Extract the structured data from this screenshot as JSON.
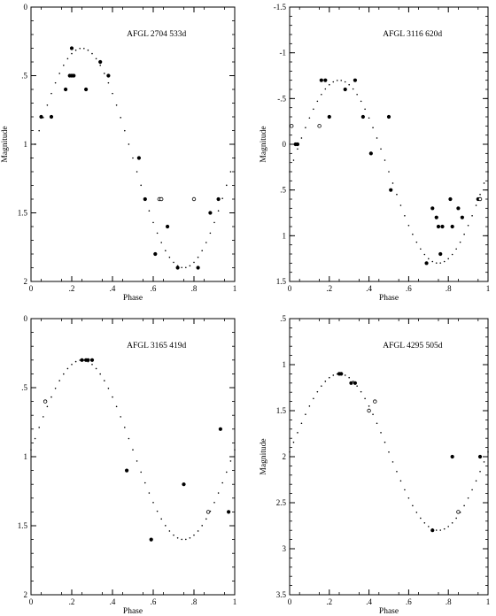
{
  "chart_data": [
    {
      "type": "scatter",
      "title": "AFGL 2704   533d",
      "xlabel": "Phase",
      "ylabel": "Magnitude",
      "xlim": [
        0,
        1
      ],
      "ylim": [
        2,
        0
      ],
      "y_inverted": true,
      "x_ticks": [
        0,
        0.2,
        0.4,
        0.6,
        0.8,
        1
      ],
      "x_tick_labels": [
        "0",
        ".2",
        ".4",
        ".6",
        ".8",
        "1"
      ],
      "y_ticks": [
        0,
        0.5,
        1,
        1.5,
        2
      ],
      "y_tick_labels": [
        "0",
        ".5",
        "1",
        "1.5",
        "2"
      ],
      "fit": {
        "mean": 1.1,
        "amplitude": 0.8,
        "peak_phase": 0.25
      },
      "series": [
        {
          "marker": "filled",
          "x": [
            0.05,
            0.1,
            0.17,
            0.19,
            0.2,
            0.2,
            0.21,
            0.27,
            0.34,
            0.38,
            0.53,
            0.56,
            0.61,
            0.67,
            0.72,
            0.82,
            0.88,
            0.92
          ],
          "y": [
            0.8,
            0.8,
            0.6,
            0.5,
            0.3,
            0.5,
            0.5,
            0.6,
            0.4,
            0.5,
            1.1,
            1.4,
            1.8,
            1.6,
            1.9,
            1.9,
            1.5,
            1.4
          ]
        },
        {
          "marker": "open",
          "x": [
            0.63,
            0.64,
            0.8
          ],
          "y": [
            1.4,
            1.4,
            1.4
          ]
        }
      ]
    },
    {
      "type": "scatter",
      "title": "AFGL 3116   620d",
      "xlabel": "Phase",
      "ylabel": "Magnitude",
      "xlim": [
        0,
        1
      ],
      "ylim": [
        1.5,
        -1.5
      ],
      "y_inverted": true,
      "x_ticks": [
        0,
        0.2,
        0.4,
        0.6,
        0.8,
        1
      ],
      "x_tick_labels": [
        "0",
        ".2",
        ".4",
        ".6",
        ".8",
        "1"
      ],
      "y_ticks": [
        -1.5,
        -1,
        -0.5,
        0,
        0.5,
        1,
        1.5
      ],
      "y_tick_labels": [
        "-1.5",
        "-1",
        "-.5",
        "0",
        ".5",
        "1",
        "1.5"
      ],
      "fit": {
        "mean": 0.3,
        "amplitude": 1.0,
        "peak_phase": 0.25
      },
      "series": [
        {
          "marker": "filled",
          "x": [
            0.03,
            0.04,
            0.16,
            0.18,
            0.2,
            0.28,
            0.33,
            0.37,
            0.41,
            0.5,
            0.51,
            0.69,
            0.72,
            0.74,
            0.75,
            0.76,
            0.77,
            0.81,
            0.82,
            0.85,
            0.87,
            0.95
          ],
          "y": [
            0.0,
            0.0,
            -0.7,
            -0.7,
            -0.3,
            -0.6,
            -0.7,
            -0.3,
            0.1,
            -0.3,
            0.5,
            1.3,
            0.7,
            0.8,
            0.9,
            1.2,
            0.9,
            0.6,
            0.9,
            0.7,
            0.8,
            0.6
          ]
        },
        {
          "marker": "open",
          "x": [
            0.01,
            0.15,
            0.96
          ],
          "y": [
            -0.2,
            -0.2,
            0.6
          ]
        }
      ]
    },
    {
      "type": "scatter",
      "title": "AFGL 3165   419d",
      "xlabel": "Phase",
      "ylabel": "",
      "xlim": [
        0,
        1
      ],
      "ylim": [
        2,
        0
      ],
      "y_inverted": true,
      "x_ticks": [
        0,
        0.2,
        0.4,
        0.6,
        0.8,
        1
      ],
      "x_tick_labels": [
        "0",
        ".2",
        ".4",
        ".6",
        ".8",
        "1"
      ],
      "y_ticks": [
        0,
        0.5,
        1,
        1.5,
        2
      ],
      "y_tick_labels": [
        "0",
        ".5",
        "1",
        "1.5",
        "2"
      ],
      "fit": {
        "mean": 0.95,
        "amplitude": 0.65,
        "peak_phase": 0.25
      },
      "series": [
        {
          "marker": "filled",
          "x": [
            0.25,
            0.27,
            0.28,
            0.3,
            0.47,
            0.59,
            0.75,
            0.93,
            0.97
          ],
          "y": [
            0.3,
            0.3,
            0.3,
            0.3,
            1.1,
            1.6,
            1.2,
            0.8,
            1.4
          ]
        },
        {
          "marker": "open",
          "x": [
            0.07,
            0.87
          ],
          "y": [
            0.6,
            1.4
          ]
        }
      ]
    },
    {
      "type": "scatter",
      "title": "AFGL 4295   505d",
      "xlabel": "Phase",
      "ylabel": "Magnitude",
      "xlim": [
        0,
        1
      ],
      "ylim": [
        3.5,
        0.5
      ],
      "y_inverted": true,
      "x_ticks": [
        0,
        0.2,
        0.4,
        0.6,
        0.8,
        1
      ],
      "x_tick_labels": [
        "0",
        ".2",
        ".4",
        ".6",
        ".8",
        "1"
      ],
      "y_ticks": [
        0.5,
        1,
        1.5,
        2,
        2.5,
        3,
        3.5
      ],
      "y_tick_labels": [
        ".5",
        "1",
        "1.5",
        "2",
        "2.5",
        "3",
        "3.5"
      ],
      "fit": {
        "mean": 1.95,
        "amplitude": 0.85,
        "peak_phase": 0.25
      },
      "series": [
        {
          "marker": "filled",
          "x": [
            0.25,
            0.26,
            0.31,
            0.33,
            0.72,
            0.82,
            0.96
          ],
          "y": [
            1.1,
            1.1,
            1.2,
            1.2,
            2.8,
            2.0,
            2.0
          ]
        },
        {
          "marker": "open",
          "x": [
            0.4,
            0.43,
            0.85
          ],
          "y": [
            1.5,
            1.4,
            2.6
          ]
        }
      ]
    }
  ]
}
